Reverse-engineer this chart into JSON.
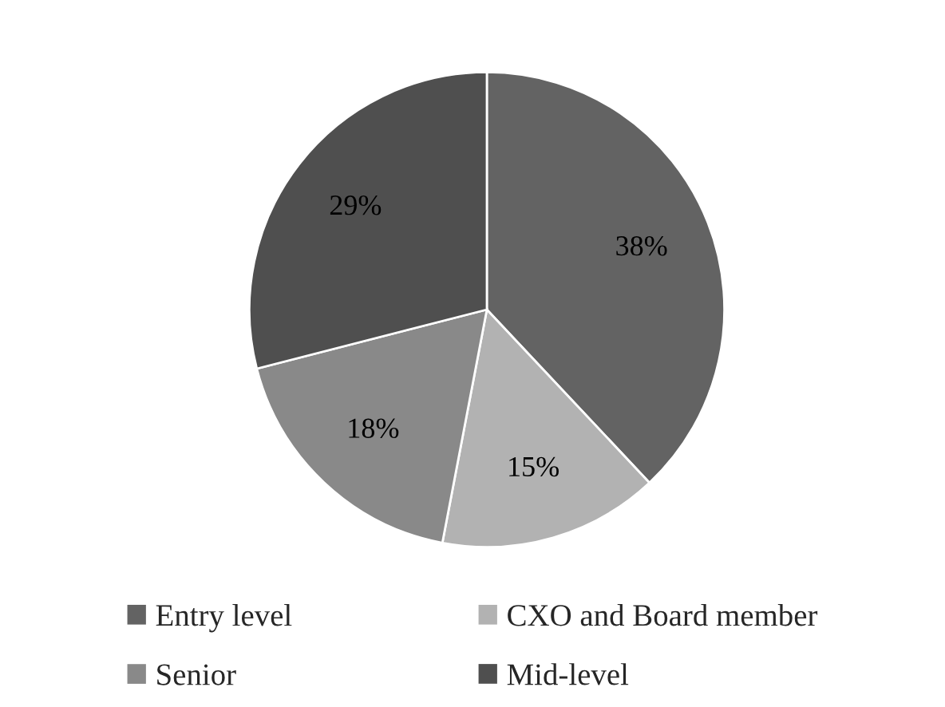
{
  "chart_data": {
    "type": "pie",
    "categories": [
      "Entry level",
      "CXO and Board member",
      "Senior",
      "Mid-level"
    ],
    "values": [
      38,
      15,
      18,
      29
    ],
    "colors": [
      "#636363",
      "#b2b2b2",
      "#898989",
      "#4f4f4f"
    ],
    "value_labels": [
      "38%",
      "15%",
      "18%",
      "29%"
    ],
    "legend": "bottom"
  }
}
